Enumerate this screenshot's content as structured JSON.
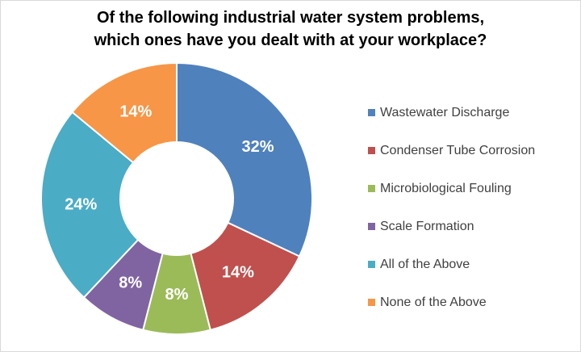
{
  "chart_data": {
    "type": "pie",
    "style": "donut",
    "title_lines": [
      "Of the following industrial water system problems,",
      "which ones have you dealt with at your workplace?"
    ],
    "data_label_format": "percent",
    "legend_position": "right",
    "slices": [
      {
        "name": "Wastewater Discharge",
        "value": 32,
        "label": "32%",
        "color": "#4F81BD"
      },
      {
        "name": "Condenser Tube Corrosion",
        "value": 14,
        "label": "14%",
        "color": "#C0504D"
      },
      {
        "name": "Microbiological Fouling",
        "value": 8,
        "label": "8%",
        "color": "#9BBB59"
      },
      {
        "name": "Scale Formation",
        "value": 8,
        "label": "8%",
        "color": "#8064A2"
      },
      {
        "name": "All of the Above",
        "value": 24,
        "label": "24%",
        "color": "#4BACC6"
      },
      {
        "name": "None of the Above",
        "value": 14,
        "label": "14%",
        "color": "#F79646"
      }
    ]
  }
}
